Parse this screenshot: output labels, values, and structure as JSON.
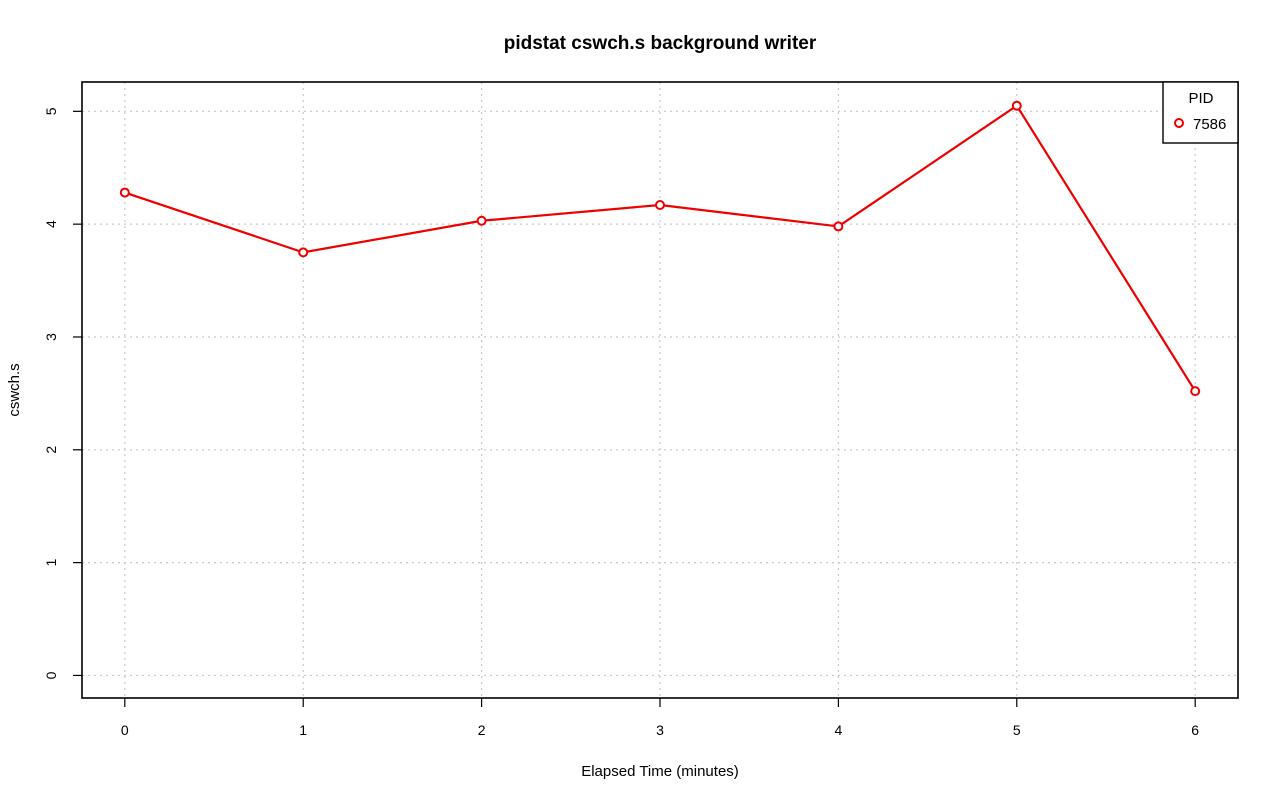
{
  "chart_data": {
    "type": "line",
    "title": "pidstat cswch.s background writer",
    "xlabel": "Elapsed Time (minutes)",
    "ylabel": "cswch.s",
    "x": [
      0,
      1,
      2,
      3,
      4,
      5,
      6
    ],
    "xticks": [
      "0",
      "1",
      "2",
      "3",
      "4",
      "5",
      "6"
    ],
    "yticks": [
      "0",
      "1",
      "2",
      "3",
      "4",
      "5"
    ],
    "xlim": [
      -0.24,
      6.24
    ],
    "ylim": [
      -0.2,
      5.26
    ],
    "grid": true,
    "legend": {
      "title": "PID",
      "position": "top-right"
    },
    "series": [
      {
        "name": "7586",
        "color": "#ee0000",
        "values": [
          4.28,
          3.75,
          4.03,
          4.17,
          3.98,
          5.05,
          2.52
        ]
      }
    ]
  }
}
